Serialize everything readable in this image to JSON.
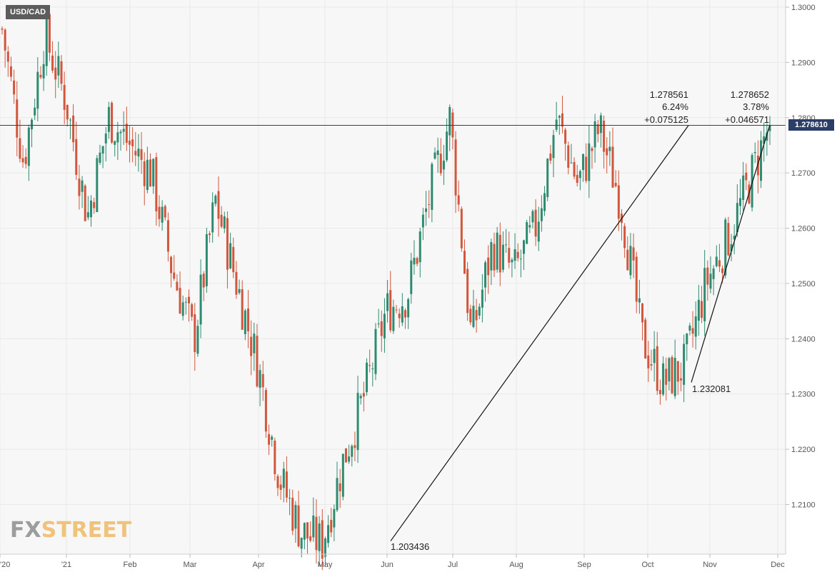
{
  "instrument": "USD/CAD",
  "current_price_label": "1.278610",
  "logo": {
    "part1": "FX",
    "part2": "STREET"
  },
  "colors": {
    "up": "#2e8b6f",
    "down": "#d2563c",
    "price_line": "#2b3e68",
    "grid": "#e9e9e9"
  },
  "chart_data": {
    "type": "candlestick",
    "title": "USD/CAD",
    "ylim": [
      1.2005,
      1.3
    ],
    "y_ticks": [
      "1.2100",
      "1.2200",
      "1.2300",
      "1.2400",
      "1.2500",
      "1.2600",
      "1.2700",
      "1.2800",
      "1.2900",
      "1.3000"
    ],
    "x_ticks": [
      "'20",
      "'21",
      "Feb",
      "Mar",
      "Apr",
      "May",
      "Jun",
      "Jul",
      "Aug",
      "Sep",
      "Oct",
      "Nov",
      "Dec"
    ],
    "horizontal_line": 1.27861,
    "annotations": {
      "low_1": "1.203436",
      "low_2": "1.232081",
      "move_1": {
        "price": "1.278561",
        "pct": "6.24%",
        "change": "+0.075125"
      },
      "move_2": {
        "price": "1.278652",
        "pct": "3.78%",
        "change": "+0.046571"
      }
    },
    "trendlines": [
      {
        "from": 1.2034,
        "to": 1.2786
      },
      {
        "from": 1.2321,
        "to": 1.2787
      }
    ],
    "key_closes": [
      1.296,
      1.272,
      1.295,
      1.283,
      1.262,
      1.28,
      1.275,
      1.27,
      1.252,
      1.24,
      1.265,
      1.25,
      1.235,
      1.215,
      1.205,
      1.203,
      1.218,
      1.23,
      1.245,
      1.248,
      1.265,
      1.28,
      1.24,
      1.257,
      1.252,
      1.26,
      1.28,
      1.268,
      1.278,
      1.265,
      1.24,
      1.232,
      1.235,
      1.25,
      1.258,
      1.268,
      1.279
    ]
  }
}
